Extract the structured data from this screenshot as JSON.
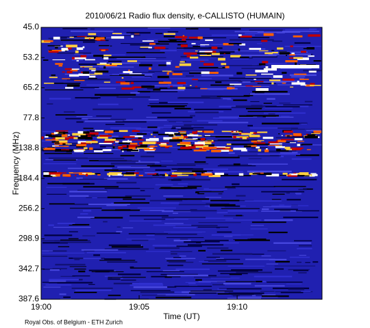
{
  "chart_data": {
    "type": "spectrogram",
    "title": "2010/06/21  Radio flux density, e-CALLISTO (HUMAIN)",
    "x_label": "Time (UT)",
    "y_label": "Frequency (MHz)",
    "footer": "Royal Obs. of Belgium - ETH Zurich",
    "xlim": [
      1140,
      1154.33
    ],
    "xticks": [
      {
        "value": 1140,
        "label": "19:00"
      },
      {
        "value": 1145,
        "label": "19:05"
      },
      {
        "value": 1150,
        "label": "19:10"
      }
    ],
    "ylim": [
      45,
      387.6
    ],
    "yticks": [
      {
        "value": 45,
        "label": "45.0"
      },
      53.2,
      65.2,
      77.8,
      138.8,
      184.4,
      256.2,
      298.9,
      342.7,
      387.6
    ]
  }
}
